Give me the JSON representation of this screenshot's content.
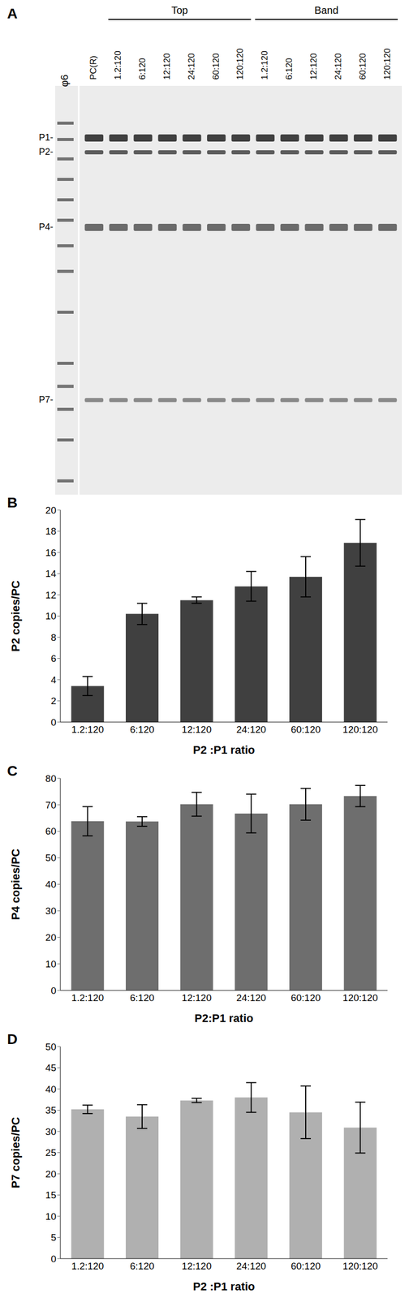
{
  "gel": {
    "title": "A",
    "marker_lane": "φ6",
    "lanes": [
      "PC(R)"
    ],
    "groups": [
      {
        "label": "Top",
        "lanes": [
          "1.2:120",
          "6:120",
          "12:120",
          "24:120",
          "60:120",
          "120:120"
        ]
      },
      {
        "label": "Band",
        "lanes": [
          "1.2:120",
          "6:120",
          "12:120",
          "24:120",
          "60:120",
          "120:120"
        ]
      }
    ],
    "bands": [
      "P1-",
      "P2-",
      "P4-",
      "P7-"
    ]
  },
  "chart_data": [
    {
      "type": "bar",
      "title": "B",
      "y_label": "P2 copies/PC",
      "x_label": "P2 :P1 ratio",
      "categories": [
        "1.2:120",
        "6:120",
        "12:120",
        "24:120",
        "60:120",
        "120:120"
      ],
      "values": [
        3.4,
        10.2,
        11.5,
        12.8,
        13.7,
        16.9
      ],
      "errors": [
        0.9,
        1.0,
        0.3,
        1.4,
        1.9,
        2.2
      ],
      "color": "#404040",
      "ylim": [
        0,
        20
      ],
      "yticks": [
        0,
        2,
        4,
        6,
        8,
        10,
        12,
        14,
        16,
        18,
        20
      ]
    },
    {
      "type": "bar",
      "title": "C",
      "y_label": "P4 copies/PC",
      "x_label": "P2:P1 ratio",
      "categories": [
        "1.2:120",
        "6:120",
        "12:120",
        "24:120",
        "60:120",
        "120:120"
      ],
      "values": [
        63.8,
        63.7,
        70.2,
        66.7,
        70.2,
        73.3
      ],
      "errors": [
        5.5,
        1.8,
        4.5,
        7.3,
        6.0,
        4.0
      ],
      "color": "#6e6e6e",
      "ylim": [
        0,
        80
      ],
      "yticks": [
        0,
        10,
        20,
        30,
        40,
        50,
        60,
        70,
        80
      ]
    },
    {
      "type": "bar",
      "title": "D",
      "y_label": "P7 copies/PC",
      "x_label": "P2 :P1 ratio",
      "categories": [
        "1.2:120",
        "6:120",
        "12:120",
        "24:120",
        "60:120",
        "120:120"
      ],
      "values": [
        35.2,
        33.5,
        37.3,
        38.0,
        34.5,
        30.9
      ],
      "errors": [
        1.0,
        2.8,
        0.5,
        3.5,
        6.2,
        6.0
      ],
      "color": "#b0b0b0",
      "ylim": [
        0,
        50
      ],
      "yticks": [
        0,
        5,
        10,
        15,
        20,
        25,
        30,
        35,
        40,
        45,
        50
      ]
    }
  ]
}
